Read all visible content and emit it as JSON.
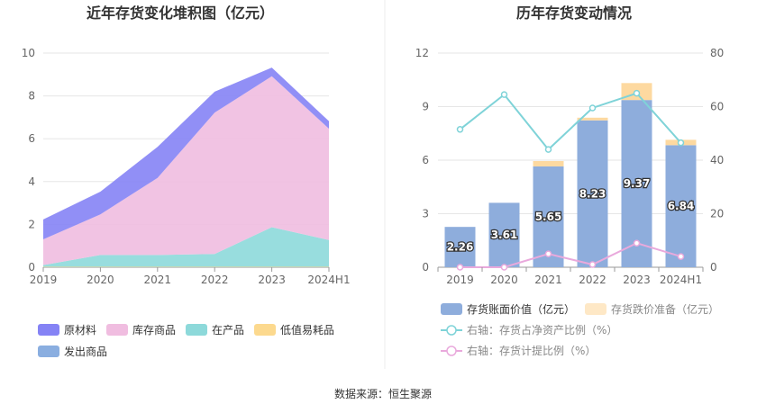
{
  "source_text": "数据来源：恒生聚源",
  "chart_data": [
    {
      "type": "area",
      "stacked": true,
      "title": "近年存货变化堆积图（亿元）",
      "categories": [
        "2019",
        "2020",
        "2021",
        "2022",
        "2023",
        "2024H1"
      ],
      "y_ticks": [
        "0",
        "2",
        "4",
        "6",
        "8",
        "10"
      ],
      "ylim": [
        0,
        10
      ],
      "grid": true,
      "legend_position": "bottom-left",
      "series": [
        {
          "name": "发出商品",
          "color": "#8aaee0",
          "values": [
            0.0,
            0.0,
            0.0,
            0.0,
            0.0,
            0.0
          ]
        },
        {
          "name": "低值易耗品",
          "color": "#fcd98e",
          "values": [
            0.02,
            0.02,
            0.02,
            0.02,
            0.02,
            0.02
          ]
        },
        {
          "name": "在产品",
          "color": "#8dd9da",
          "values": [
            0.08,
            0.55,
            0.55,
            0.6,
            1.85,
            1.25
          ]
        },
        {
          "name": "库存商品",
          "color": "#f0bde0",
          "values": [
            1.2,
            1.9,
            3.6,
            6.6,
            7.05,
            5.2
          ]
        },
        {
          "name": "原材料",
          "color": "#8583f5",
          "values": [
            0.93,
            1.06,
            1.45,
            0.98,
            0.4,
            0.35
          ]
        }
      ]
    },
    {
      "type": "bar",
      "stacked": true,
      "title": "历年存货变动情况",
      "categories": [
        "2019",
        "2020",
        "2021",
        "2022",
        "2023",
        "2024H1"
      ],
      "y_left_ticks": [
        "0",
        "3",
        "6",
        "9",
        "12"
      ],
      "ylim_left": [
        0,
        12
      ],
      "y_right_ticks": [
        "0",
        "20",
        "40",
        "60",
        "80"
      ],
      "ylim_right": [
        0,
        80
      ],
      "grid": true,
      "legend_position": "bottom",
      "series": [
        {
          "name": "存货账面价值（亿元）",
          "color": "#8eaddc",
          "values": [
            2.26,
            3.61,
            5.65,
            8.23,
            9.37,
            6.84
          ],
          "labels": [
            "2.26",
            "3.61",
            "5.65",
            "8.23",
            "9.37",
            "6.84"
          ]
        },
        {
          "name": "存货跌价准备（亿元）",
          "color": "#fdd9a0",
          "values": [
            0.0,
            0.0,
            0.3,
            0.15,
            0.95,
            0.3
          ]
        }
      ],
      "lines": [
        {
          "name": "右轴：存货占净资产比例（%）",
          "color": "#7fd3d8",
          "values": [
            51.5,
            64.5,
            44.0,
            59.5,
            65.0,
            46.5
          ]
        },
        {
          "name": "右轴：存货计提比例（%）",
          "color": "#e9a9dc",
          "values": [
            0.0,
            0.0,
            5.0,
            1.0,
            9.0,
            4.0
          ]
        }
      ]
    }
  ]
}
